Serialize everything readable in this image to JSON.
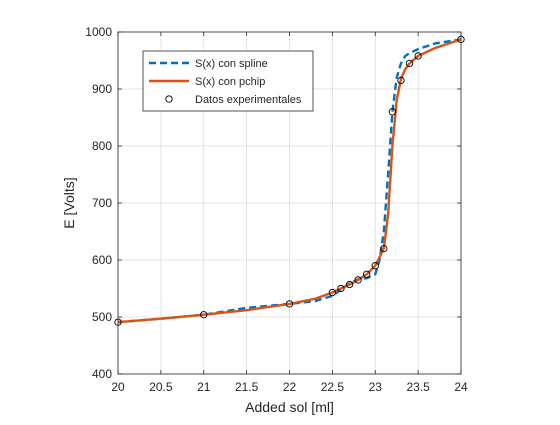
{
  "chart_data": {
    "type": "line",
    "title": "",
    "xlabel": "Added sol [ml]",
    "ylabel": "E [Volts]",
    "xlim": [
      20,
      24
    ],
    "ylim": [
      400,
      1000
    ],
    "xticks": [
      20,
      20.5,
      21,
      21.5,
      22,
      22.5,
      23,
      23.5,
      24
    ],
    "xtick_labels": [
      "20",
      "20.5",
      "21",
      "21.5",
      "22",
      "22.5",
      "23",
      "23.5",
      "24"
    ],
    "yticks": [
      400,
      500,
      600,
      700,
      800,
      900,
      1000
    ],
    "ytick_labels": [
      "400",
      "500",
      "600",
      "700",
      "800",
      "900",
      "1000"
    ],
    "grid": true,
    "legend_position": "top-left",
    "series": [
      {
        "name": "S(x) con spline",
        "style": "dashed",
        "color": "#0072BD",
        "x": [
          20,
          20.5,
          21,
          21.5,
          22,
          22.3,
          22.5,
          22.6,
          22.7,
          22.8,
          22.9,
          23.0,
          23.05,
          23.1,
          23.15,
          23.2,
          23.25,
          23.3,
          23.35,
          23.4,
          23.5,
          23.7,
          24
        ],
        "y": [
          491,
          497,
          504,
          516,
          523,
          528,
          537,
          548,
          559,
          566,
          568,
          575,
          600,
          650,
          750,
          860,
          920,
          945,
          958,
          963,
          970,
          980,
          987
        ]
      },
      {
        "name": "S(x) con pchip",
        "style": "solid",
        "color": "#D95319",
        "x": [
          20,
          20.5,
          21,
          21.5,
          22,
          22.3,
          22.5,
          22.6,
          22.7,
          22.8,
          22.9,
          23.0,
          23.1,
          23.15,
          23.2,
          23.25,
          23.3,
          23.35,
          23.4,
          23.5,
          23.7,
          24
        ],
        "y": [
          491,
          497,
          504,
          512,
          523,
          532,
          543,
          550,
          557,
          565,
          575,
          590,
          620,
          680,
          800,
          880,
          918,
          935,
          945,
          958,
          972,
          987
        ]
      },
      {
        "name": "Datos experimentales",
        "style": "markers",
        "color": "#000000",
        "x": [
          20,
          21,
          22,
          22.5,
          22.6,
          22.7,
          22.8,
          22.9,
          23.0,
          23.1,
          23.2,
          23.3,
          23.4,
          23.5,
          24
        ],
        "y": [
          491,
          504,
          523,
          543,
          550,
          557,
          565,
          575,
          590,
          620,
          860,
          915,
          945,
          958,
          987
        ]
      }
    ]
  }
}
